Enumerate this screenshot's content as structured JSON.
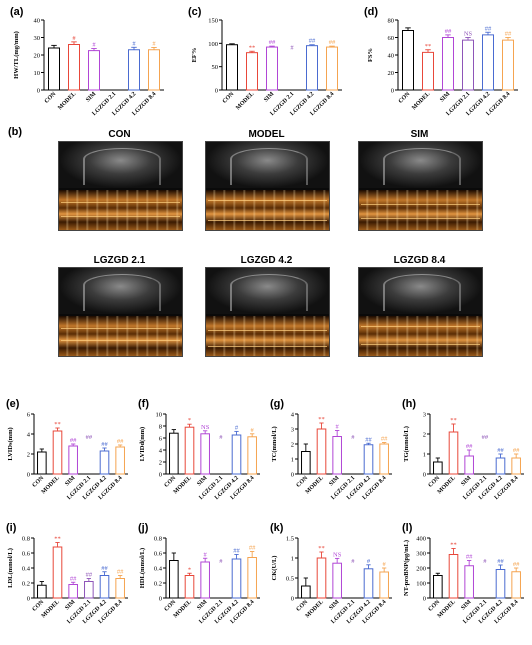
{
  "groups": [
    "CON",
    "MODEL",
    "SIM",
    "LGZGD 2.1",
    "LGZGD 4.2",
    "LGZGD 8.4"
  ],
  "colors": [
    "#000000",
    "#e8473a",
    "#b146d6",
    "#8e55b8",
    "#4a6bd1",
    "#f5a450"
  ],
  "panel_b": {
    "label": "(b)",
    "titles": [
      "CON",
      "MODEL",
      "SIM",
      "LGZGD 2.1",
      "LGZGD 4.2",
      "LGZGD 8.4"
    ]
  },
  "chart_data": [
    {
      "id": "a",
      "label": "(a)",
      "type": "bar",
      "ylabel": "HW/TL(mg/mm)",
      "ylim": [
        0,
        40
      ],
      "yticks": [
        0,
        10,
        20,
        30,
        40
      ],
      "values": [
        24,
        26,
        22.5,
        null,
        23,
        23
      ],
      "errors": [
        1.5,
        1.5,
        1.2,
        null,
        1.4,
        1.3
      ],
      "marks": [
        "",
        "#",
        "#",
        "",
        "#",
        "#"
      ]
    },
    {
      "id": "c",
      "label": "(c)",
      "type": "bar",
      "ylabel": "EF%",
      "ylim": [
        0,
        150
      ],
      "yticks": [
        0,
        50,
        100,
        150
      ],
      "values": [
        97,
        80,
        92,
        null,
        95,
        92
      ],
      "errors": [
        2,
        3,
        2,
        null,
        2,
        2
      ],
      "marks": [
        "",
        "**",
        "##",
        "#",
        "##",
        "##"
      ]
    },
    {
      "id": "d",
      "label": "(d)",
      "type": "bar",
      "ylabel": "FS%",
      "ylim": [
        0,
        80
      ],
      "yticks": [
        0,
        20,
        40,
        60,
        80
      ],
      "values": [
        68,
        43,
        60,
        57,
        63,
        57
      ],
      "errors": [
        3,
        3,
        3,
        3,
        3,
        3
      ],
      "marks": [
        "",
        "**",
        "##",
        "NS",
        "##",
        "##"
      ]
    },
    {
      "id": "e",
      "label": "(e)",
      "type": "bar",
      "ylabel": "LVIDs(mm)",
      "ylim": [
        0,
        6
      ],
      "yticks": [
        0,
        2,
        4,
        6
      ],
      "values": [
        2.2,
        4.3,
        2.8,
        null,
        2.3,
        2.7
      ],
      "errors": [
        0.3,
        0.3,
        0.2,
        null,
        0.3,
        0.2
      ],
      "marks": [
        "",
        "**",
        "##",
        "##",
        "##",
        "##"
      ]
    },
    {
      "id": "f",
      "label": "(f)",
      "type": "bar",
      "ylabel": "LVIDd(mm)",
      "ylim": [
        0,
        10
      ],
      "yticks": [
        0,
        2,
        4,
        6,
        8,
        10
      ],
      "values": [
        6.8,
        7.8,
        6.7,
        null,
        6.5,
        6.2
      ],
      "errors": [
        0.6,
        0.5,
        0.5,
        null,
        0.6,
        0.5
      ],
      "marks": [
        "",
        "*",
        "NS",
        "#",
        "#",
        "#"
      ]
    },
    {
      "id": "g",
      "label": "(g)",
      "type": "bar",
      "ylabel": "TC(mmol/L)",
      "ylim": [
        0,
        4
      ],
      "yticks": [
        0,
        1,
        2,
        3,
        4
      ],
      "values": [
        1.5,
        3.0,
        2.5,
        null,
        1.95,
        2.0
      ],
      "errors": [
        0.5,
        0.4,
        0.4,
        null,
        0.1,
        0.1
      ],
      "marks": [
        "",
        "**",
        "#",
        "#",
        "##",
        "##"
      ]
    },
    {
      "id": "h",
      "label": "(h)",
      "type": "bar",
      "ylabel": "TG(mmol/L)",
      "ylim": [
        0,
        3
      ],
      "yticks": [
        0,
        1,
        2,
        3
      ],
      "values": [
        0.6,
        2.1,
        0.9,
        null,
        0.8,
        0.8
      ],
      "errors": [
        0.2,
        0.4,
        0.3,
        null,
        0.2,
        0.2
      ],
      "marks": [
        "",
        "**",
        "##",
        "##",
        "##",
        "##"
      ]
    },
    {
      "id": "i",
      "label": "(i)",
      "type": "bar",
      "ylabel": "LDL(mmol/L)",
      "ylim": [
        0,
        0.8
      ],
      "yticks": [
        0,
        0.2,
        0.4,
        0.6,
        0.8
      ],
      "values": [
        0.17,
        0.68,
        0.18,
        0.22,
        0.3,
        0.26
      ],
      "errors": [
        0.05,
        0.06,
        0.03,
        0.04,
        0.05,
        0.04
      ],
      "marks": [
        "",
        "**",
        "##",
        "##",
        "##",
        "##"
      ]
    },
    {
      "id": "j",
      "label": "(j)",
      "type": "bar",
      "ylabel": "HDL(mmol/L)",
      "ylim": [
        0,
        0.8
      ],
      "yticks": [
        0,
        0.2,
        0.4,
        0.6,
        0.8
      ],
      "values": [
        0.5,
        0.3,
        0.48,
        null,
        0.52,
        0.54
      ],
      "errors": [
        0.1,
        0.03,
        0.05,
        null,
        0.06,
        0.08
      ],
      "marks": [
        "",
        "*",
        "#",
        "#",
        "##",
        "##"
      ]
    },
    {
      "id": "k",
      "label": "(k)",
      "type": "bar",
      "ylabel": "CK(U/L)",
      "ylim": [
        0,
        1.5
      ],
      "yticks": [
        0,
        0.5,
        1.0,
        1.5
      ],
      "values": [
        0.3,
        1.0,
        0.87,
        null,
        0.73,
        0.65
      ],
      "errors": [
        0.2,
        0.15,
        0.12,
        null,
        0.1,
        0.1
      ],
      "marks": [
        "",
        "**",
        "NS",
        "#",
        "#",
        "#"
      ]
    },
    {
      "id": "l",
      "label": "(l)",
      "type": "bar",
      "ylabel": "NT-proBNP(pg/mL)",
      "ylim": [
        0,
        400
      ],
      "yticks": [
        0,
        100,
        200,
        300,
        400
      ],
      "values": [
        150,
        290,
        215,
        null,
        190,
        175
      ],
      "errors": [
        15,
        40,
        35,
        null,
        30,
        25
      ],
      "marks": [
        "",
        "**",
        "##",
        "#",
        "##",
        "##"
      ]
    }
  ]
}
